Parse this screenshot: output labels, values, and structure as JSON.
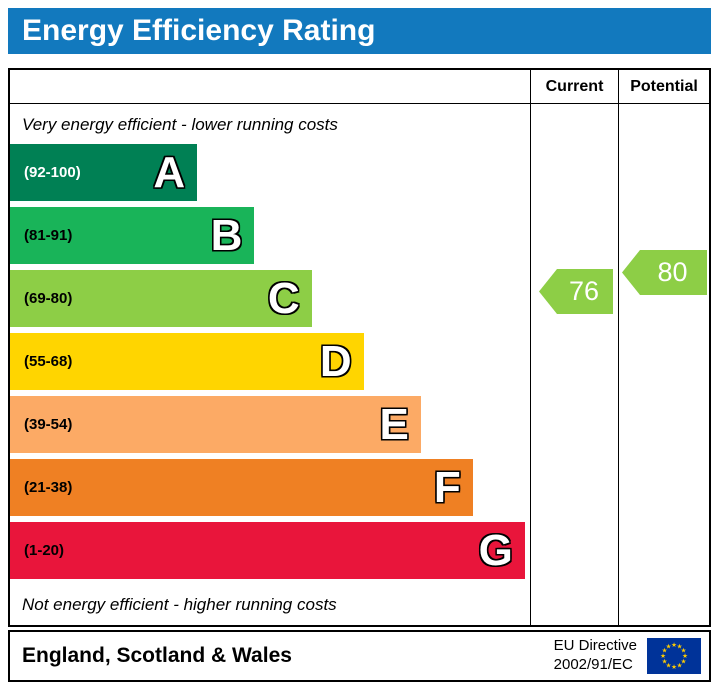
{
  "title": "Energy Efficiency Rating",
  "columns": {
    "current": "Current",
    "potential": "Potential"
  },
  "notes": {
    "top": "Very energy efficient - lower running costs",
    "bottom": "Not energy efficient - higher running costs"
  },
  "bands": [
    {
      "letter": "A",
      "range": "(92-100)",
      "color": "#008054",
      "range_color": "#ffffff",
      "width_pct": 36
    },
    {
      "letter": "B",
      "range": "(81-91)",
      "color": "#19b459",
      "range_color": "#000000",
      "width_pct": 47
    },
    {
      "letter": "C",
      "range": "(69-80)",
      "color": "#8dce46",
      "range_color": "#000000",
      "width_pct": 58
    },
    {
      "letter": "D",
      "range": "(55-68)",
      "color": "#ffd500",
      "range_color": "#000000",
      "width_pct": 68
    },
    {
      "letter": "E",
      "range": "(39-54)",
      "color": "#fcaa65",
      "range_color": "#000000",
      "width_pct": 79
    },
    {
      "letter": "F",
      "range": "(21-38)",
      "color": "#ef8023",
      "range_color": "#000000",
      "width_pct": 89
    },
    {
      "letter": "G",
      "range": "(1-20)",
      "color": "#e9153b",
      "range_color": "#000000",
      "width_pct": 99
    }
  ],
  "ratings": {
    "current": {
      "value": "76",
      "color": "#8dce46",
      "band": "C"
    },
    "potential": {
      "value": "80",
      "color": "#8dce46",
      "band": "C"
    }
  },
  "footer": {
    "region": "England, Scotland & Wales",
    "directive_line1": "EU Directive",
    "directive_line2": "2002/91/EC"
  },
  "colors": {
    "header_blue": "#1279be",
    "eu_flag_blue": "#003399",
    "eu_star_yellow": "#ffcc00"
  },
  "chart_data": {
    "type": "bar",
    "title": "Energy Efficiency Rating",
    "categories": [
      "A",
      "B",
      "C",
      "D",
      "E",
      "F",
      "G"
    ],
    "ranges": [
      "92-100",
      "81-91",
      "69-80",
      "55-68",
      "39-54",
      "21-38",
      "1-20"
    ],
    "colors": [
      "#008054",
      "#19b459",
      "#8dce46",
      "#ffd500",
      "#fcaa65",
      "#ef8023",
      "#e9153b"
    ],
    "relative_bar_widths_pct": [
      36,
      47,
      58,
      68,
      79,
      89,
      99
    ],
    "current": 76,
    "current_band": "C",
    "potential": 80,
    "potential_band": "C",
    "scale": [
      1,
      100
    ],
    "top_note": "Very energy efficient - lower running costs",
    "bottom_note": "Not energy efficient - higher running costs",
    "region": "England, Scotland & Wales",
    "directive": "EU Directive 2002/91/EC"
  }
}
